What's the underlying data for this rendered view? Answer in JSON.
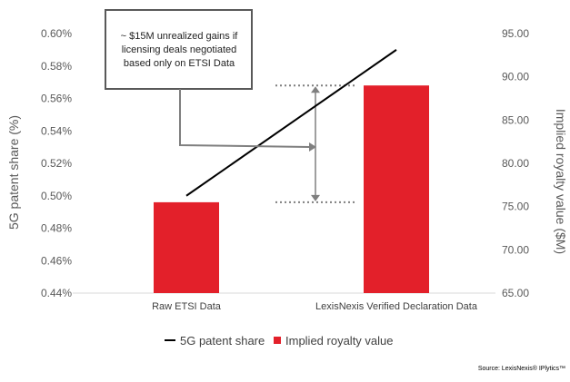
{
  "chart_data": {
    "type": "bar+line",
    "categories": [
      "Raw ETSI Data",
      "LexisNexis Verified Declaration Data"
    ],
    "series": [
      {
        "name": "5G patent share",
        "kind": "line",
        "axis": "left",
        "values": [
          0.5,
          0.59
        ]
      },
      {
        "name": "Implied royalty value",
        "kind": "bar",
        "axis": "right",
        "values": [
          75.5,
          89.0
        ]
      }
    ],
    "left_axis": {
      "label": "5G patent share (%)",
      "ylim": [
        0.44,
        0.6
      ],
      "ticks": [
        "0.60%",
        "0.58%",
        "0.56%",
        "0.54%",
        "0.52%",
        "0.50%",
        "0.48%",
        "0.46%",
        "0.44%"
      ],
      "tick_values": [
        0.6,
        0.58,
        0.56,
        0.54,
        0.52,
        0.5,
        0.48,
        0.46,
        0.44
      ]
    },
    "right_axis": {
      "label": "Implied royalty value ($M)",
      "ylim": [
        65,
        95
      ],
      "ticks": [
        "95.00",
        "90.00",
        "85.00",
        "80.00",
        "75.00",
        "70.00",
        "65.00"
      ],
      "tick_values": [
        95,
        90,
        85,
        80,
        75,
        70,
        65
      ]
    },
    "legend": {
      "placement": "bottom",
      "items": [
        {
          "label": "5G patent share",
          "symbol": "line",
          "color": "#000000"
        },
        {
          "label": "Implied royalty value",
          "symbol": "square",
          "color": "#e3202a"
        }
      ]
    },
    "annotation": {
      "lines": [
        "~ $15M unrealized gains if",
        "licensing deals negotiated",
        "based only on ETSI Data"
      ],
      "range": [
        75.5,
        89.0
      ]
    },
    "source": "Source: LexisNexis® IPlytics™",
    "colors": {
      "bar": "#e3202a",
      "line": "#000000",
      "bracket": "#7f7f7f",
      "callout_border": "#595959"
    },
    "grid": false
  }
}
